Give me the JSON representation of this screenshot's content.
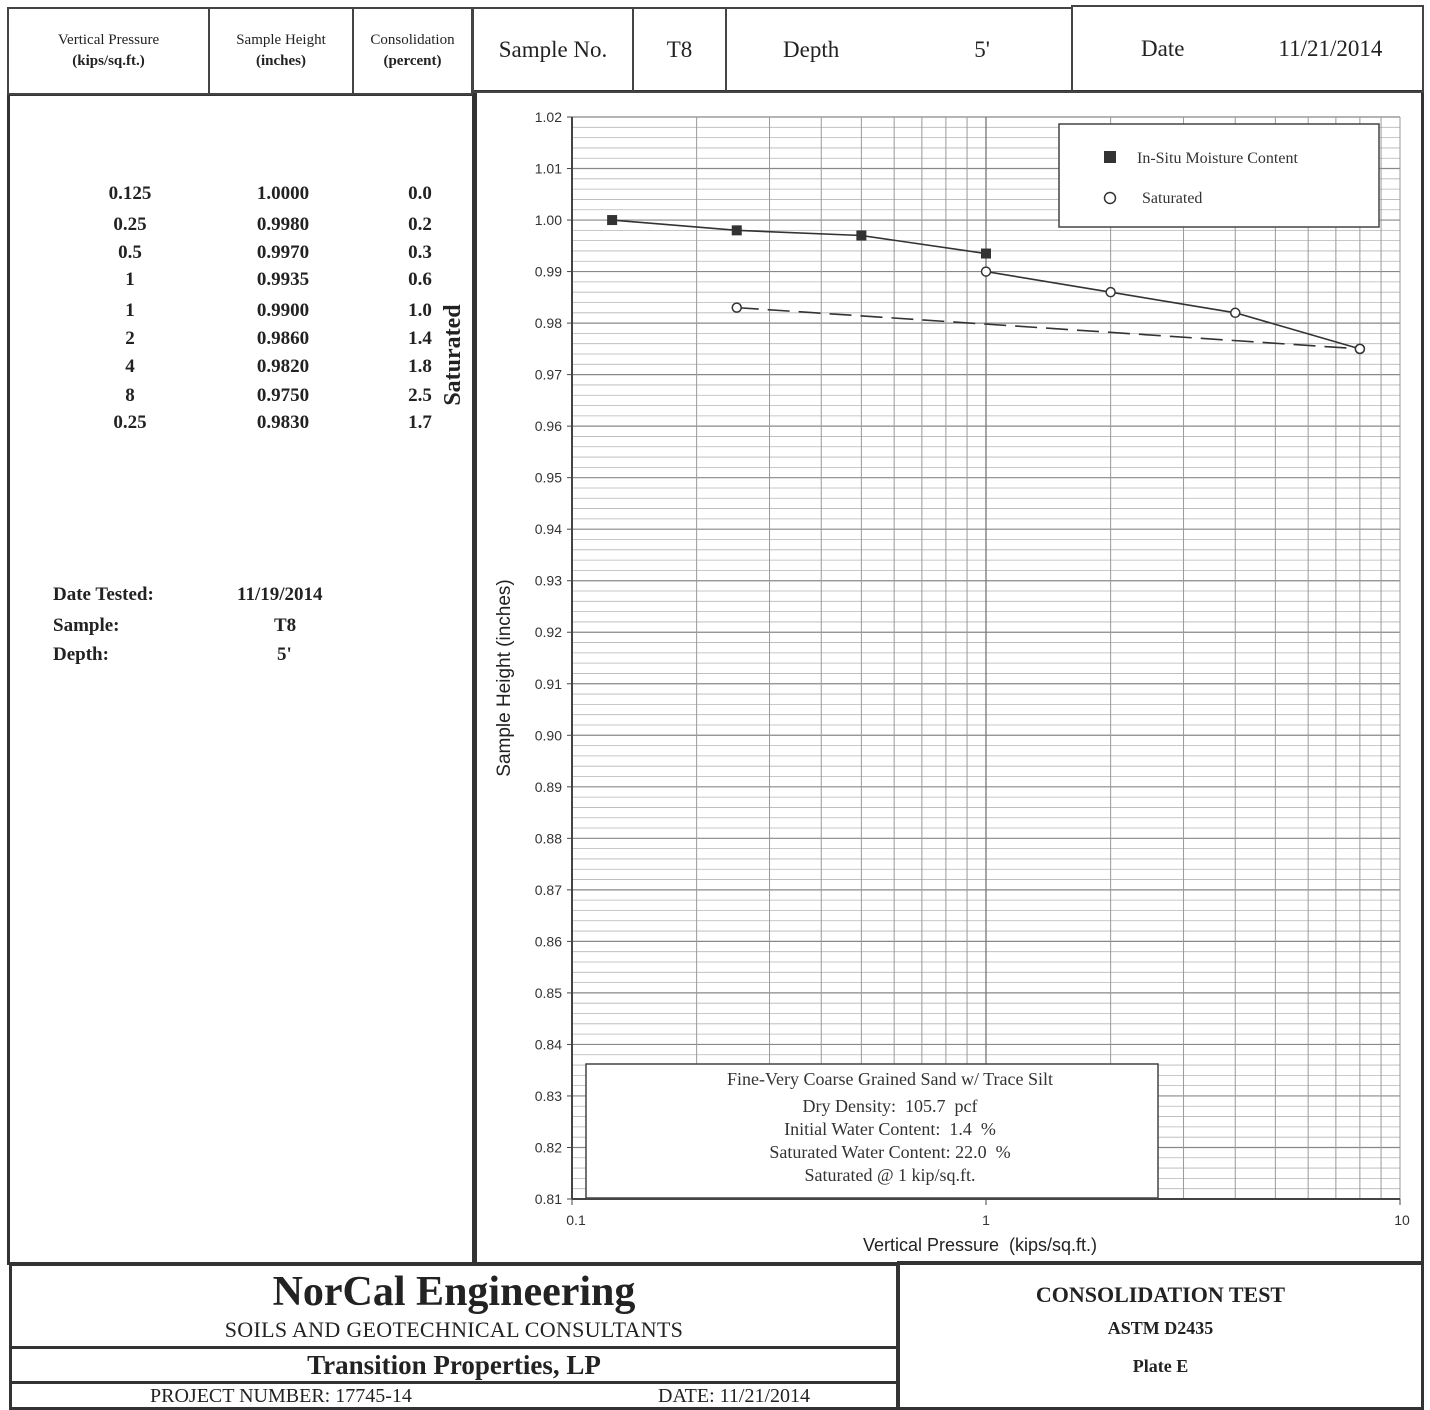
{
  "header": {
    "col1_line1": "Vertical Pressure",
    "col1_line2": "(kips/sq.ft.)",
    "col2_line1": "Sample Height",
    "col2_line2": "(inches)",
    "col3_line1": "Consolidation",
    "col3_line2": "(percent)",
    "sample_label": "Sample No.",
    "sample_value": "T8",
    "depth_label": "Depth",
    "depth_value": "5'",
    "date_label": "Date",
    "date_value": "11/21/2014"
  },
  "table": {
    "rows": [
      {
        "pressure": "0.125",
        "height": "1.0000",
        "consolidation": "0.0"
      },
      {
        "pressure": "0.25",
        "height": "0.9980",
        "consolidation": "0.2"
      },
      {
        "pressure": "0.5",
        "height": "0.9970",
        "consolidation": "0.3"
      },
      {
        "pressure": "1",
        "height": "0.9935",
        "consolidation": "0.6"
      },
      {
        "pressure": "1",
        "height": "0.9900",
        "consolidation": "1.0"
      },
      {
        "pressure": "2",
        "height": "0.9860",
        "consolidation": "1.4"
      },
      {
        "pressure": "4",
        "height": "0.9820",
        "consolidation": "1.8"
      },
      {
        "pressure": "8",
        "height": "0.9750",
        "consolidation": "2.5"
      },
      {
        "pressure": "0.25",
        "height": "0.9830",
        "consolidation": "1.7"
      }
    ],
    "saturated_label": "Saturated"
  },
  "test_info": {
    "date_tested_label": "Date Tested:",
    "date_tested_value": "11/19/2014",
    "sample_label": "Sample:",
    "sample_value": "T8",
    "depth_label": "Depth:",
    "depth_value": "5'"
  },
  "chart_data": {
    "type": "scatter",
    "x_scale": "log",
    "xlim": [
      0.1,
      10
    ],
    "ylim": [
      0.81,
      1.02
    ],
    "xlabel": "Vertical Pressure  (kips/sq.ft.)",
    "ylabel": "Sample Height (inches)",
    "x_ticks": [
      "0.1",
      "1",
      "10"
    ],
    "y_ticks": [
      "1.02",
      "1.01",
      "1.00",
      "0.99",
      "0.98",
      "0.97",
      "0.96",
      "0.95",
      "0.94",
      "0.93",
      "0.92",
      "0.91",
      "0.90",
      "0.89",
      "0.88",
      "0.87",
      "0.86",
      "0.85",
      "0.84",
      "0.83",
      "0.82",
      "0.81"
    ],
    "grid": true,
    "legend_position": "top-right",
    "series": [
      {
        "name": "In-Situ Moisture Content",
        "marker": "filled-square",
        "line": "solid",
        "points": [
          [
            0.125,
            1.0
          ],
          [
            0.25,
            0.998
          ],
          [
            0.5,
            0.997
          ],
          [
            1,
            0.9935
          ]
        ]
      },
      {
        "name": "Saturated",
        "marker": "open-circle",
        "line": "solid",
        "points": [
          [
            1,
            0.99
          ],
          [
            2,
            0.986
          ],
          [
            4,
            0.982
          ],
          [
            8,
            0.975
          ]
        ]
      },
      {
        "name": "",
        "marker": "open-circle",
        "line": "dashed",
        "points": [
          [
            0.25,
            0.983
          ],
          [
            8,
            0.975
          ]
        ]
      }
    ],
    "annotation": {
      "line1": "Fine-Very Coarse Grained Sand w/ Trace Silt",
      "line2": "Dry Density:  105.7  pcf",
      "line3": "Initial Water Content:  1.4  %",
      "line4": "Saturated Water Content: 22.0  %",
      "line5": "Saturated @ 1 kip/sq.ft."
    }
  },
  "footer": {
    "company": "NorCal  Engineering",
    "subtitle": "SOILS AND GEOTECHNICAL CONSULTANTS",
    "client": "Transition Properties, LP",
    "project_number": "PROJECT NUMBER: 17745-14",
    "date": "DATE: 11/21/2014",
    "test_title": "CONSOLIDATION TEST",
    "standard": "ASTM D2435",
    "plate": "Plate E"
  }
}
